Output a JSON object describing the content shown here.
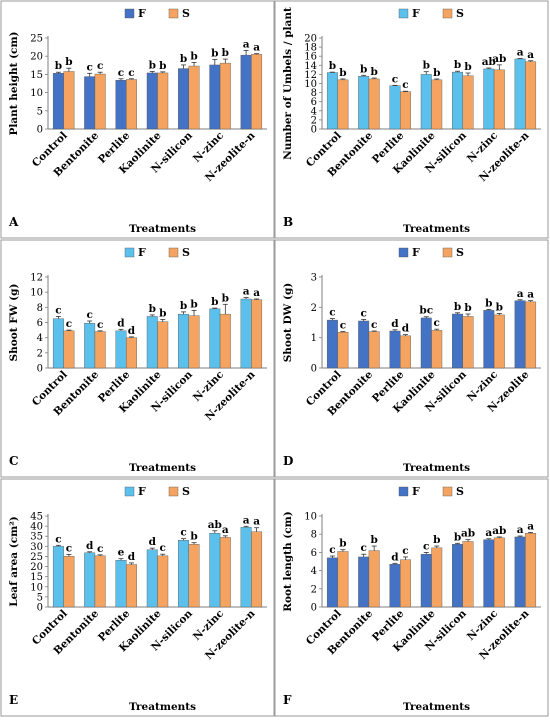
{
  "colors": {
    "panel_border": "#9a9a9a",
    "axis": "#7f7f7f",
    "errbar": "#333333",
    "text": "#000000"
  },
  "chart_data": [
    {
      "type": "bar",
      "panel_label": "A",
      "categories": [
        "Control",
        "Bentonite",
        "Perlite",
        "Kaolinite",
        "N-silicon",
        "N-zinc",
        "N-zeolite-n"
      ],
      "ylabel": "Plant height (cm)",
      "xlabel": "Treatments",
      "ylim": [
        0,
        25
      ],
      "yticks": [
        0,
        5,
        10,
        15,
        20,
        25
      ],
      "legend_placement": "top-center",
      "series": [
        {
          "name": "F",
          "color": "#4472c4",
          "values": [
            15.3,
            14.4,
            13.4,
            15.4,
            16.6,
            17.6,
            20.3
          ],
          "errors": [
            0.3,
            0.9,
            0.4,
            0.4,
            1.0,
            1.5,
            1.3
          ],
          "letters": [
            "b",
            "c",
            "c",
            "b",
            "b",
            "b",
            "a"
          ]
        },
        {
          "name": "S",
          "color": "#f4a460",
          "values": [
            15.8,
            15.1,
            13.6,
            15.4,
            17.3,
            18.1,
            20.5
          ],
          "errors": [
            0.9,
            0.5,
            0.2,
            0.3,
            1.0,
            1.1,
            0.2
          ],
          "letters": [
            "b",
            "c",
            "c",
            "b",
            "b",
            "b",
            "a"
          ]
        }
      ]
    },
    {
      "type": "bar",
      "panel_label": "B",
      "categories": [
        "Control",
        "Bentonite",
        "Perlite",
        "Kaolinite",
        "N-silicon",
        "N-zinc",
        "N-zeolite-n"
      ],
      "ylabel": "Number of Umbels / plant",
      "xlabel": "Treatments",
      "ylim": [
        0,
        20
      ],
      "yticks": [
        0,
        2,
        4,
        6,
        8,
        10,
        12,
        14,
        16,
        18,
        20
      ],
      "legend_placement": "top-center",
      "series": [
        {
          "name": "F",
          "color": "#5bc0eb",
          "values": [
            12.4,
            11.6,
            9.5,
            12.0,
            12.5,
            13.2,
            15.4
          ],
          "errors": [
            0.1,
            0.2,
            0.1,
            0.6,
            0.2,
            0.2,
            0.1
          ],
          "letters": [
            "b",
            "b",
            "c",
            "b",
            "b",
            "ab",
            "a"
          ]
        },
        {
          "name": "S",
          "color": "#f4a460",
          "values": [
            10.8,
            11.0,
            8.2,
            10.8,
            11.7,
            13.0,
            14.8
          ],
          "errors": [
            0.2,
            0.2,
            0.1,
            0.2,
            0.6,
            1.1,
            0.2
          ],
          "letters": [
            "b",
            "b",
            "c",
            "b",
            "b",
            "ab",
            "a"
          ]
        }
      ]
    },
    {
      "type": "bar",
      "panel_label": "C",
      "categories": [
        "Control",
        "Bentonite",
        "Perlite",
        "Kaolinite",
        "N-silicon",
        "N-zinc",
        "N-zeolite-n"
      ],
      "ylabel": "Shoot FW (g)",
      "xlabel": "Treatments",
      "ylim": [
        0,
        12
      ],
      "yticks": [
        0,
        2,
        4,
        6,
        8,
        10,
        12
      ],
      "legend_placement": "top-center",
      "series": [
        {
          "name": "F",
          "color": "#5bc0eb",
          "values": [
            6.5,
            5.9,
            4.9,
            6.8,
            7.1,
            7.8,
            9.1
          ],
          "errors": [
            0.3,
            0.3,
            0.2,
            0.2,
            0.3,
            0.1,
            0.2
          ],
          "letters": [
            "c",
            "c",
            "d",
            "b",
            "b",
            "b",
            "a"
          ]
        },
        {
          "name": "S",
          "color": "#f4a460",
          "values": [
            4.9,
            4.8,
            4.0,
            6.1,
            6.9,
            7.1,
            9.0
          ],
          "errors": [
            0.1,
            0.1,
            0.1,
            0.3,
            0.7,
            1.3,
            0.1
          ],
          "letters": [
            "c",
            "c",
            "d",
            "b",
            "b",
            "b",
            "a"
          ]
        }
      ]
    },
    {
      "type": "bar",
      "panel_label": "D",
      "categories": [
        "Control",
        "Bentonite",
        "Perlite",
        "Kaolinite",
        "N-silicon",
        "N-zinc",
        "N-zeolite"
      ],
      "ylabel": "Shoot DW (g)",
      "xlabel": "Treatments",
      "ylim": [
        0,
        3
      ],
      "yticks": [
        0,
        1,
        2,
        3
      ],
      "legend_placement": "top-center",
      "series": [
        {
          "name": "F",
          "color": "#4472c4",
          "values": [
            1.58,
            1.55,
            1.22,
            1.65,
            1.78,
            1.9,
            2.22
          ],
          "errors": [
            0.05,
            0.05,
            0.04,
            0.04,
            0.04,
            0.03,
            0.03
          ],
          "letters": [
            "c",
            "c",
            "d",
            "bc",
            "b",
            "b",
            "a"
          ]
        },
        {
          "name": "S",
          "color": "#f4a460",
          "values": [
            1.18,
            1.2,
            1.06,
            1.24,
            1.7,
            1.75,
            2.18
          ],
          "errors": [
            0.02,
            0.02,
            0.04,
            0.04,
            0.08,
            0.05,
            0.04
          ],
          "letters": [
            "c",
            "c",
            "d",
            "c",
            "b",
            "b",
            "a"
          ]
        }
      ]
    },
    {
      "type": "bar",
      "panel_label": "E",
      "categories": [
        "Control",
        "Bentonite",
        "Perlite",
        "Kaolinite",
        "N-silicon",
        "N-zinc",
        "N-zeolite-n"
      ],
      "ylabel": "Leaf area (cm²)",
      "xlabel": "Treatments",
      "ylim": [
        0,
        45
      ],
      "yticks": [
        0,
        5,
        10,
        15,
        20,
        25,
        30,
        35,
        40,
        45
      ],
      "legend_placement": "top-center",
      "series": [
        {
          "name": "F",
          "color": "#5bc0eb",
          "values": [
            30.0,
            26.8,
            23.1,
            28.3,
            33.0,
            36.5,
            39.4
          ],
          "errors": [
            0.5,
            0.5,
            0.8,
            0.8,
            0.8,
            1.2,
            0.5
          ],
          "letters": [
            "c",
            "d",
            "e",
            "d",
            "c",
            "ab",
            "a"
          ]
        },
        {
          "name": "S",
          "color": "#f4a460",
          "values": [
            25.1,
            25.3,
            21.0,
            25.3,
            31.0,
            34.4,
            37.2
          ],
          "errors": [
            0.9,
            0.5,
            0.8,
            0.8,
            0.8,
            0.8,
            2.0
          ],
          "letters": [
            "c",
            "c",
            "d",
            "c",
            "b",
            "a",
            "a"
          ]
        }
      ]
    },
    {
      "type": "bar",
      "panel_label": "F",
      "categories": [
        "Control",
        "Bentonite",
        "Perlite",
        "Kaolinite",
        "N-silicon",
        "N-zinc",
        "N-zeolite-n"
      ],
      "ylabel": "Root length (cm)",
      "xlabel": "Treatments",
      "ylim": [
        0,
        10
      ],
      "yticks": [
        0,
        2,
        4,
        6,
        8,
        10
      ],
      "legend_placement": "top-center",
      "series": [
        {
          "name": "F",
          "color": "#4472c4",
          "values": [
            5.4,
            5.5,
            4.7,
            5.8,
            6.9,
            7.4,
            7.7
          ],
          "errors": [
            0.2,
            0.3,
            0.1,
            0.2,
            0.1,
            0.1,
            0.1
          ],
          "letters": [
            "c",
            "c",
            "d",
            "c",
            "b",
            "a",
            "a"
          ]
        },
        {
          "name": "S",
          "color": "#f4a460",
          "values": [
            6.1,
            6.2,
            5.2,
            6.5,
            7.2,
            7.6,
            8.1
          ],
          "errors": [
            0.2,
            0.5,
            0.3,
            0.2,
            0.2,
            0.1,
            0.1
          ],
          "letters": [
            "b",
            "b",
            "c",
            "b",
            "ab",
            "ab",
            "a"
          ]
        }
      ]
    }
  ]
}
